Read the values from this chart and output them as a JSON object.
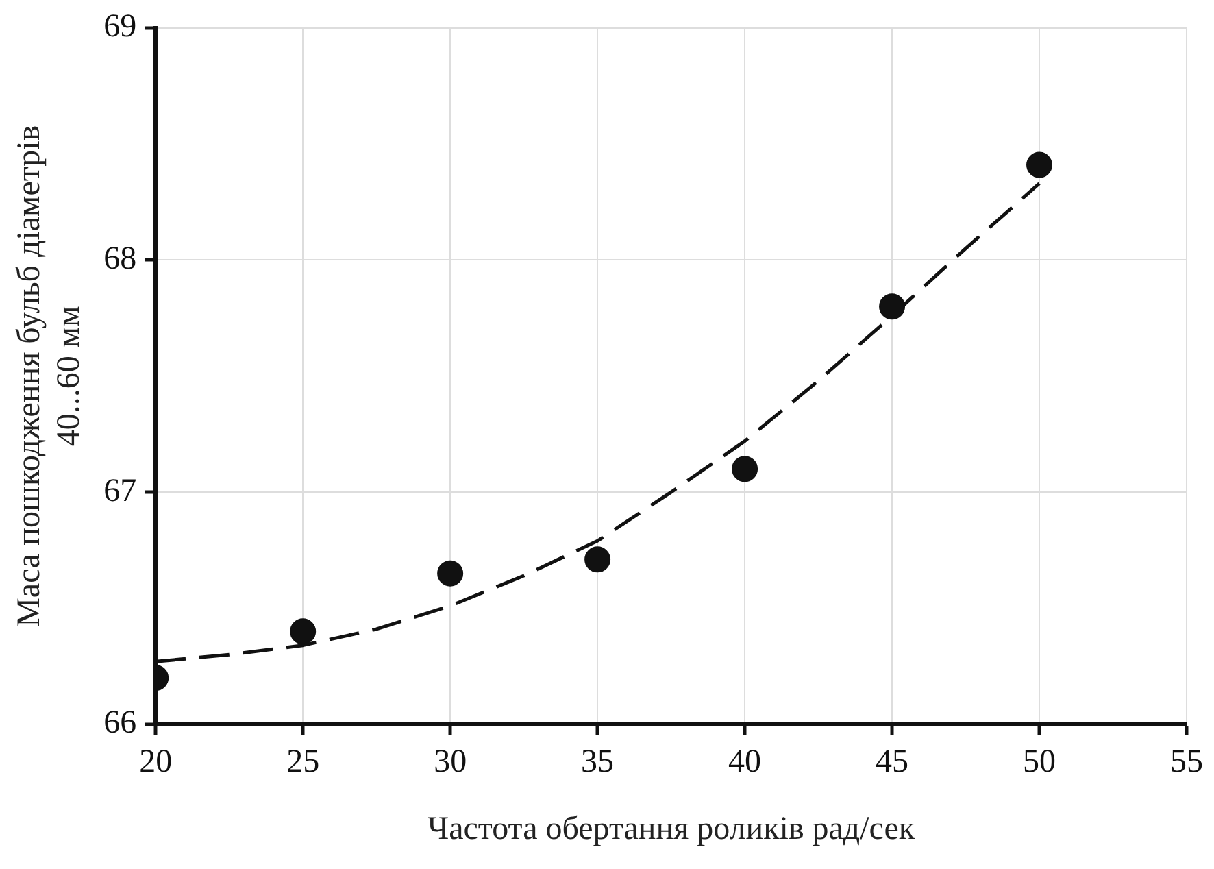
{
  "chart_data": {
    "type": "scatter",
    "xlabel": "Частота обертання роликів рад/сек",
    "ylabel": "Маса пошкодження бульб діаметрів 40...60 мм",
    "xlim": [
      20,
      55
    ],
    "xticks": [
      20,
      25,
      30,
      35,
      40,
      45,
      50,
      55
    ],
    "ylim": [
      66,
      69
    ],
    "yticks": [
      66,
      67,
      68,
      69
    ],
    "grid": true,
    "legend": false,
    "series": [
      {
        "type": "scatter",
        "color": "#111111",
        "marker": "circle",
        "x": [
          20,
          25,
          30,
          35,
          40,
          45,
          50
        ],
        "values": [
          66.2,
          66.4,
          66.65,
          66.71,
          67.1,
          67.8,
          68.41
        ]
      },
      {
        "type": "line",
        "color": "#111111",
        "marker": "none",
        "line_style": "dashed",
        "x": [
          20,
          22.5,
          25,
          27.5,
          30,
          32.5,
          35,
          37.5,
          40,
          42.5,
          45,
          47.5,
          50
        ],
        "values": [
          66.27,
          66.3,
          66.34,
          66.41,
          66.51,
          66.64,
          66.79,
          67.0,
          67.22,
          67.48,
          67.76,
          68.05,
          68.33
        ]
      }
    ]
  }
}
